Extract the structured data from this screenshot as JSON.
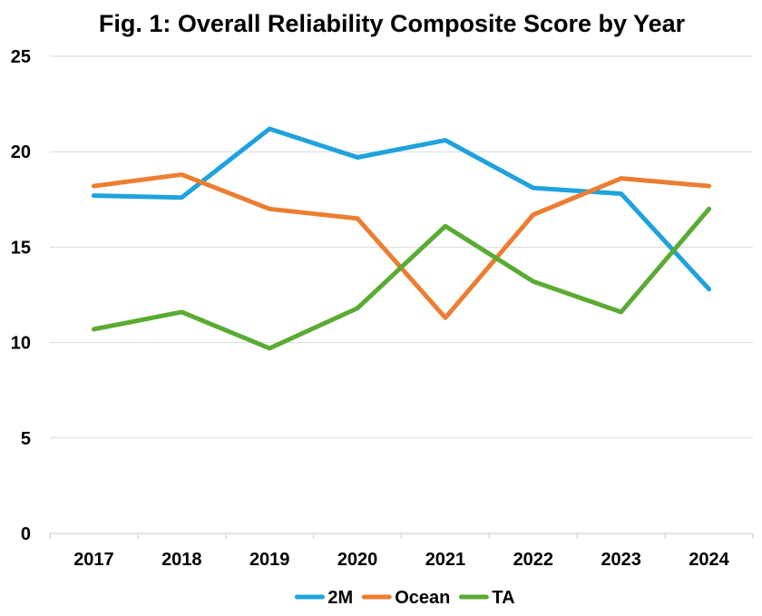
{
  "chart_data": {
    "type": "line",
    "title": "Fig. 1: Overall Reliability Composite Score by Year",
    "xlabel": "",
    "ylabel": "",
    "categories": [
      "2017",
      "2018",
      "2019",
      "2020",
      "2021",
      "2022",
      "2023",
      "2024"
    ],
    "ylim": [
      0,
      25
    ],
    "yticks": [
      0,
      5,
      10,
      15,
      20,
      25
    ],
    "grid": true,
    "legend_position": "bottom",
    "series": [
      {
        "name": "2M",
        "color": "#1FA2DD",
        "values": [
          17.7,
          17.6,
          21.2,
          19.7,
          20.6,
          18.1,
          17.8,
          12.8
        ]
      },
      {
        "name": "Ocean",
        "color": "#ED7D31",
        "values": [
          18.2,
          18.8,
          17.0,
          16.5,
          11.3,
          16.7,
          18.6,
          18.2
        ]
      },
      {
        "name": "TA",
        "color": "#5AAB33",
        "values": [
          10.7,
          11.6,
          9.7,
          11.8,
          16.1,
          13.2,
          11.6,
          17.0
        ]
      }
    ]
  }
}
